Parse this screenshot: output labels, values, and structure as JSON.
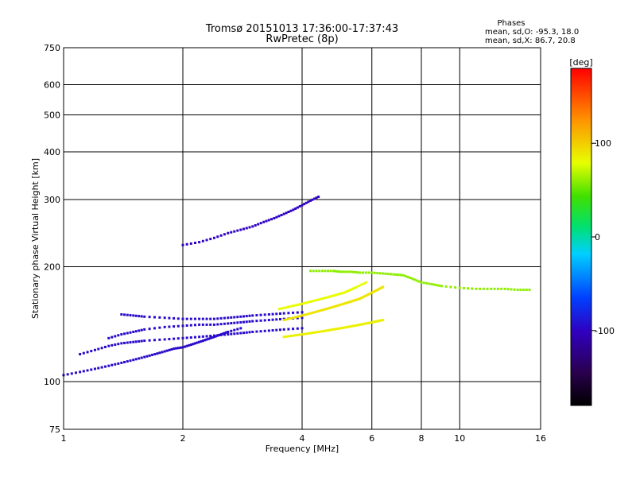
{
  "chart_data": {
    "type": "scatter",
    "title": "Tromsø 20151013 17:36:00-17:37:43",
    "subtitle": "RwPretec (8p)",
    "xlabel": "Frequency [MHz]",
    "ylabel": "Stationary phase Virtual Height [km]",
    "x_scale": "log",
    "y_scale": "log",
    "xlim": [
      1,
      16
    ],
    "ylim": [
      75,
      750
    ],
    "x_ticks": [
      1,
      2,
      4,
      6,
      8,
      10,
      16
    ],
    "x_tick_labels": [
      "1",
      "2",
      "4",
      "6",
      "8",
      "10",
      "16"
    ],
    "y_ticks": [
      75,
      100,
      200,
      300,
      400,
      500,
      600,
      750
    ],
    "y_tick_labels": [
      "75",
      "100",
      "200",
      "300",
      "400",
      "500",
      "600",
      "750"
    ],
    "grid": true,
    "stats": {
      "heading": "Phases",
      "line_o": "mean, sd,O: -95.3, 18.0",
      "line_x": "mean, sd,X:  86.7, 20.8"
    },
    "colorbar": {
      "label": "[deg]",
      "ticks": [
        100,
        0,
        -100
      ],
      "tick_labels": [
        "100",
        "0",
        "-100"
      ],
      "range": [
        -180,
        180
      ]
    },
    "traces": [
      {
        "name": "o-trace-low",
        "phase": -95,
        "x": [
          1.0,
          1.1,
          1.2,
          1.3,
          1.4,
          1.5,
          1.6,
          1.7,
          1.8,
          1.9,
          2.0,
          2.1,
          2.2,
          2.3,
          2.4,
          2.5,
          2.6,
          2.8
        ],
        "y": [
          104,
          106,
          108,
          110,
          112,
          114,
          116,
          118,
          120,
          122,
          123,
          125,
          127,
          129,
          131,
          133,
          135,
          138
        ]
      },
      {
        "name": "o-trace-mid1",
        "phase": -95,
        "x": [
          1.1,
          1.2,
          1.3,
          1.4,
          1.5,
          1.6,
          1.8,
          2.0,
          2.2,
          2.4,
          2.6,
          2.8,
          3.0,
          3.3,
          3.6,
          4.0
        ],
        "y": [
          118,
          121,
          124,
          126,
          127,
          128,
          129,
          130,
          131,
          132,
          133,
          134,
          135,
          136,
          137,
          138
        ]
      },
      {
        "name": "o-trace-mid2",
        "phase": -95,
        "x": [
          1.3,
          1.4,
          1.5,
          1.6,
          1.8,
          2.0,
          2.2,
          2.4,
          2.6,
          2.8,
          3.0,
          3.3,
          3.6,
          4.0
        ],
        "y": [
          130,
          133,
          135,
          137,
          139,
          140,
          141,
          141,
          142,
          143,
          144,
          145,
          146,
          147
        ]
      },
      {
        "name": "o-trace-high",
        "phase": -95,
        "x": [
          1.4,
          1.5,
          1.6,
          1.8,
          2.0,
          2.2,
          2.4,
          2.6,
          2.8,
          3.0,
          3.3,
          3.6,
          4.0
        ],
        "y": [
          150,
          149,
          148,
          147,
          146,
          146,
          146,
          147,
          148,
          149,
          150,
          151,
          152
        ]
      },
      {
        "name": "o-trace-f1",
        "phase": -100,
        "x": [
          2.0,
          2.2,
          2.4,
          2.6,
          2.8,
          3.0,
          3.2,
          3.4,
          3.6,
          3.8,
          4.0,
          4.2,
          4.4
        ],
        "y": [
          228,
          232,
          238,
          245,
          250,
          255,
          262,
          268,
          275,
          282,
          290,
          298,
          305
        ]
      },
      {
        "name": "x-trace-low",
        "phase": 85,
        "x": [
          3.6,
          3.8,
          4.0,
          4.2,
          4.4,
          4.6,
          4.8,
          5.0,
          5.2,
          5.4,
          5.6,
          5.8,
          6.0,
          6.2,
          6.4
        ],
        "y": [
          131,
          132,
          133,
          134,
          135,
          136,
          137,
          138,
          139,
          140,
          141,
          142,
          143,
          144,
          145
        ]
      },
      {
        "name": "x-trace-mid",
        "phase": 90,
        "x": [
          3.6,
          3.8,
          4.0,
          4.2,
          4.4,
          4.6,
          4.8,
          5.0,
          5.2,
          5.4,
          5.6,
          5.8,
          6.0,
          6.2,
          6.4
        ],
        "y": [
          145,
          147,
          149,
          151,
          153,
          155,
          157,
          159,
          161,
          163,
          165,
          168,
          171,
          174,
          177
        ]
      },
      {
        "name": "x-trace-high",
        "phase": 80,
        "x": [
          3.5,
          3.7,
          3.9,
          4.1,
          4.3,
          4.5,
          4.7,
          4.9,
          5.1,
          5.3,
          5.5,
          5.8
        ],
        "y": [
          155,
          157,
          159,
          161,
          163,
          165,
          167,
          169,
          171,
          174,
          177,
          182
        ]
      },
      {
        "name": "f-layer-band",
        "phase": 60,
        "x": [
          4.2,
          4.5,
          4.8,
          5.0,
          5.3,
          5.6,
          6.0,
          6.4,
          6.8,
          7.2,
          7.6,
          8.0,
          8.5,
          9.0,
          10.0,
          11.0,
          12.0,
          13.0,
          14.0,
          15.0
        ],
        "y": [
          195,
          195,
          195,
          194,
          194,
          193,
          193,
          192,
          191,
          190,
          186,
          182,
          180,
          178,
          176,
          175,
          175,
          175,
          174,
          174
        ]
      }
    ]
  }
}
